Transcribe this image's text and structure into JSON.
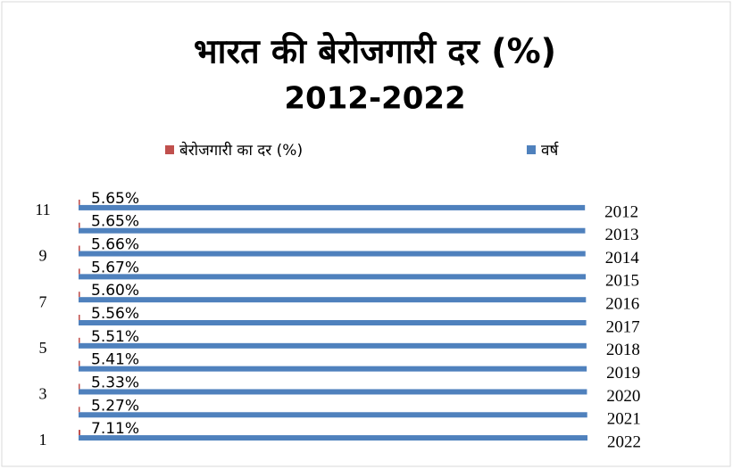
{
  "chart_data": {
    "type": "hbar",
    "title": "भारत की बेरोजगारी दर (%)",
    "subtitle": "2012-2022",
    "categories": [
      1,
      null,
      3,
      null,
      5,
      null,
      7,
      null,
      9,
      null,
      11
    ],
    "series": [
      {
        "name": "बेरोजगारी का दर (%)",
        "color": "#c0504d",
        "values": [
          7.11,
          5.27,
          5.33,
          5.41,
          5.51,
          5.56,
          5.6,
          5.67,
          5.66,
          5.65,
          5.65
        ],
        "value_labels": [
          "7.11%",
          "5.27%",
          "5.33%",
          "5.41%",
          "5.51%",
          "5.56%",
          "5.60%",
          "5.67%",
          "5.66%",
          "5.65%",
          "5.65%"
        ]
      },
      {
        "name": "वर्ष",
        "color": "#4f81bd",
        "values": [
          2022,
          2021,
          2020,
          2019,
          2018,
          2017,
          2016,
          2015,
          2014,
          2013,
          2012
        ]
      }
    ],
    "xlim": [
      0,
      2022
    ],
    "legend": "top"
  }
}
